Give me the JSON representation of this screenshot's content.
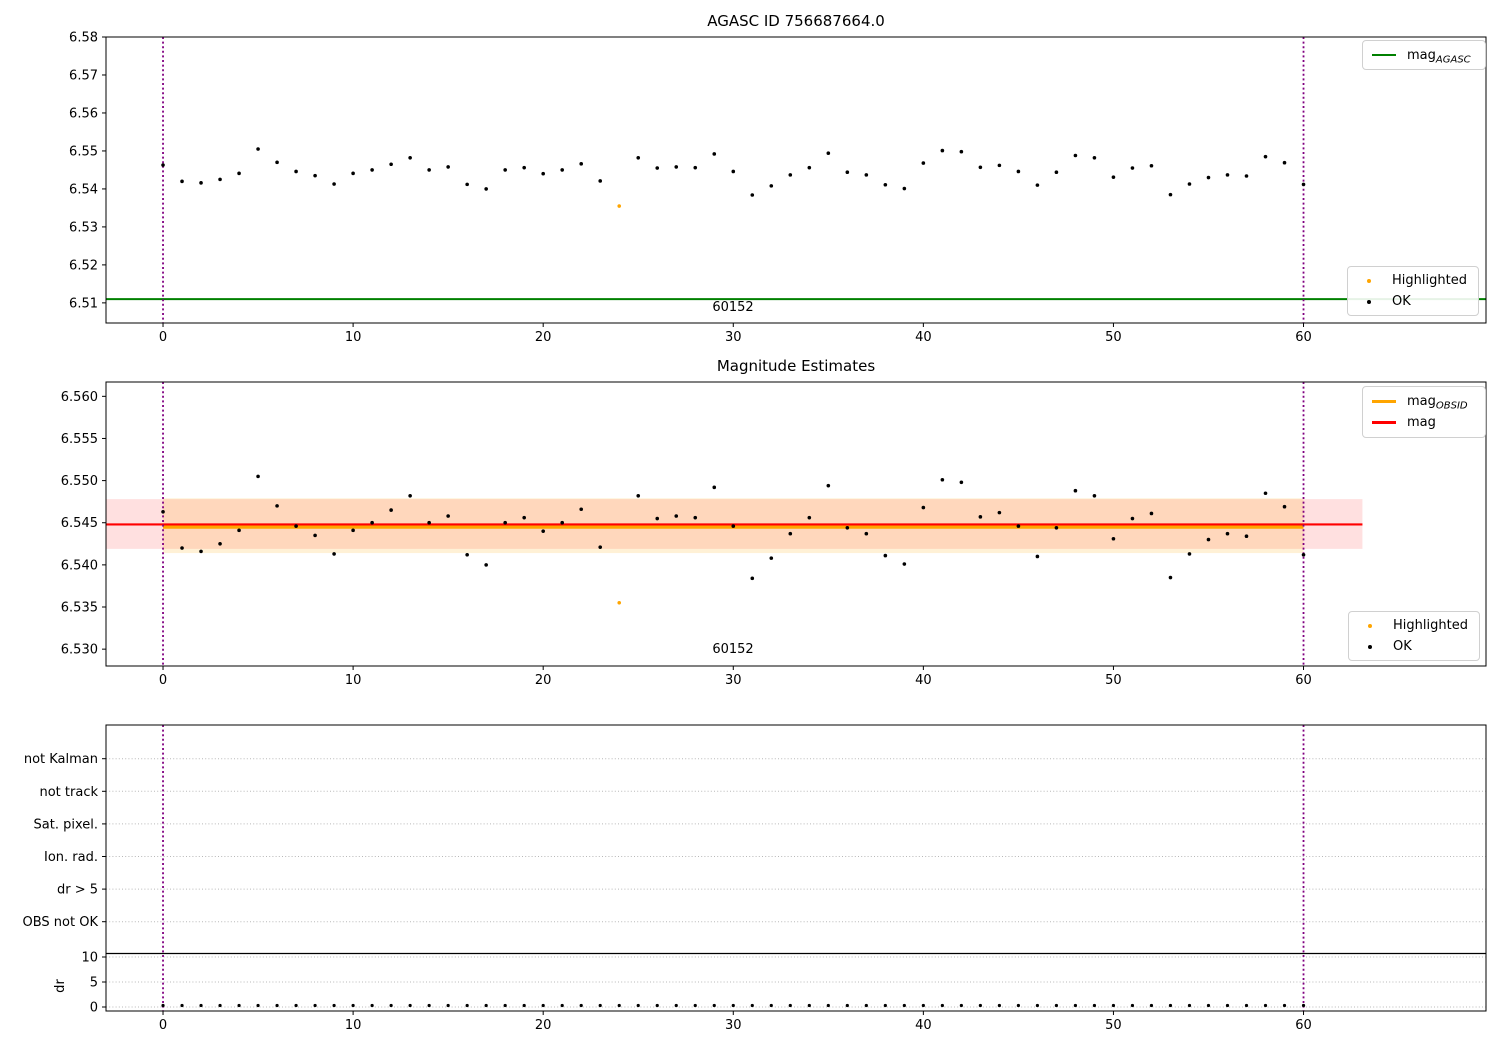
{
  "figure": {
    "title_top": "AGASC ID 756687664.0",
    "title_middle": "Magnitude Estimates"
  },
  "colors": {
    "agasc_line": "#008000",
    "obsid_line": "#ffa500",
    "mag_line": "#ff0000",
    "boundary_vline": "#800080",
    "ok_marker": "#000000",
    "highlighted_marker": "#ffa500",
    "band_red": "rgba(255,0,0,0.12)",
    "band_orange": "rgba(255,165,0,0.16)",
    "gridline": "#b8b8b8",
    "separator_line": "#000000"
  },
  "obsid": {
    "p1": "60152",
    "p2": "60152"
  },
  "legends": {
    "p1_top": {
      "items": [
        {
          "label": "mag",
          "sub": "AGASC"
        }
      ]
    },
    "p1_bottom": {
      "items": [
        {
          "label": "Highlighted"
        },
        {
          "label": "OK"
        }
      ]
    },
    "p2_top": {
      "items": [
        {
          "label": "mag",
          "sub": "OBSID"
        },
        {
          "label": "mag",
          "sub": ""
        }
      ]
    },
    "p2_bottom": {
      "items": [
        {
          "label": "Highlighted"
        },
        {
          "label": "OK"
        }
      ]
    }
  },
  "chart_data": [
    {
      "type": "scatter",
      "panel": "p1",
      "title": "AGASC ID 756687664.0",
      "xlim": [
        -3,
        69.6
      ],
      "ylim": [
        6.5047,
        6.58
      ],
      "xticks": [
        0,
        10,
        20,
        30,
        40,
        50,
        60
      ],
      "yticks": [
        6.51,
        6.52,
        6.53,
        6.54,
        6.55,
        6.56,
        6.57,
        6.58
      ],
      "ytick_decimals": 2,
      "vlines": [
        0,
        60
      ],
      "hlines": [
        {
          "name": "mag-agasc-line",
          "y": 6.511,
          "color": "#008000",
          "width": 2,
          "x0": -3,
          "x1": 69.6
        }
      ],
      "bands": [],
      "x": [
        0,
        1,
        2,
        3,
        4,
        5,
        6,
        7,
        8,
        9,
        10,
        11,
        12,
        13,
        14,
        15,
        16,
        17,
        18,
        19,
        20,
        21,
        22,
        23,
        24,
        25,
        26,
        27,
        28,
        29,
        30,
        31,
        32,
        33,
        34,
        35,
        36,
        37,
        38,
        39,
        40,
        41,
        42,
        43,
        44,
        45,
        46,
        47,
        48,
        49,
        50,
        51,
        52,
        53,
        54,
        55,
        56,
        57,
        58,
        59,
        60
      ],
      "y": [
        6.5463,
        6.542,
        6.5416,
        6.5425,
        6.5441,
        6.5505,
        6.547,
        6.5446,
        6.5435,
        6.5413,
        6.5441,
        6.545,
        6.5465,
        6.5482,
        6.545,
        6.5458,
        6.5412,
        6.54,
        6.545,
        6.5456,
        6.544,
        6.545,
        6.5466,
        6.5421,
        6.5355,
        6.5482,
        6.5455,
        6.5458,
        6.5456,
        6.5492,
        6.5446,
        6.5384,
        6.5408,
        6.5437,
        6.5456,
        6.5494,
        6.5444,
        6.5437,
        6.5411,
        6.5401,
        6.5468,
        6.5501,
        6.5498,
        6.5457,
        6.5462,
        6.5446,
        6.541,
        6.5444,
        6.5488,
        6.5482,
        6.5431,
        6.5455,
        6.5461,
        6.5385,
        6.5413,
        6.543,
        6.5437,
        6.5434,
        6.5485,
        6.5469,
        6.5412
      ],
      "highlighted": [
        24
      ],
      "obsid_label": {
        "text": "60152",
        "x": 30
      }
    },
    {
      "type": "scatter",
      "panel": "p2",
      "title": "Magnitude Estimates",
      "xlim": [
        -3,
        69.6
      ],
      "ylim": [
        6.528,
        6.5617
      ],
      "xticks": [
        0,
        10,
        20,
        30,
        40,
        50,
        60
      ],
      "yticks": [
        6.53,
        6.535,
        6.54,
        6.545,
        6.55,
        6.555,
        6.56
      ],
      "ytick_decimals": 3,
      "vlines": [
        0,
        60
      ],
      "bands": [
        {
          "name": "mag-std-band",
          "y0": 6.5419,
          "y1": 6.5478,
          "x0": -3,
          "x1": 63.1,
          "color": "rgba(255,0,0,0.12)"
        },
        {
          "name": "obsid-std-band",
          "y0": 6.5414,
          "y1": 6.5479,
          "x0": 0,
          "x1": 60,
          "color": "rgba(255,165,0,0.16)"
        }
      ],
      "hlines": [
        {
          "name": "mag-obsid-line",
          "y": 6.5445,
          "color": "#ffa500",
          "width": 3.5,
          "x0": 0,
          "x1": 60
        },
        {
          "name": "mag-line",
          "y": 6.5448,
          "color": "#ff0000",
          "width": 2.2,
          "x0": -3,
          "x1": 63.1
        }
      ],
      "x": [
        0,
        1,
        2,
        3,
        4,
        5,
        6,
        7,
        8,
        9,
        10,
        11,
        12,
        13,
        14,
        15,
        16,
        17,
        18,
        19,
        20,
        21,
        22,
        23,
        24,
        25,
        26,
        27,
        28,
        29,
        30,
        31,
        32,
        33,
        34,
        35,
        36,
        37,
        38,
        39,
        40,
        41,
        42,
        43,
        44,
        45,
        46,
        47,
        48,
        49,
        50,
        51,
        52,
        53,
        54,
        55,
        56,
        57,
        58,
        59,
        60
      ],
      "y": [
        6.5463,
        6.542,
        6.5416,
        6.5425,
        6.5441,
        6.5505,
        6.547,
        6.5446,
        6.5435,
        6.5413,
        6.5441,
        6.545,
        6.5465,
        6.5482,
        6.545,
        6.5458,
        6.5412,
        6.54,
        6.545,
        6.5456,
        6.544,
        6.545,
        6.5466,
        6.5421,
        6.5355,
        6.5482,
        6.5455,
        6.5458,
        6.5456,
        6.5492,
        6.5446,
        6.5384,
        6.5408,
        6.5437,
        6.5456,
        6.5494,
        6.5444,
        6.5437,
        6.5411,
        6.5401,
        6.5468,
        6.5501,
        6.5498,
        6.5457,
        6.5462,
        6.5446,
        6.541,
        6.5444,
        6.5488,
        6.5482,
        6.5431,
        6.5455,
        6.5461,
        6.5385,
        6.5413,
        6.543,
        6.5437,
        6.5434,
        6.5485,
        6.5469,
        6.5412
      ],
      "highlighted": [
        24
      ],
      "obsid_label": {
        "text": "60152",
        "x": 30
      }
    },
    {
      "type": "flags",
      "panel": "p3",
      "categories": [
        "not Kalman",
        "not track",
        "Sat. pixel.",
        "Ion. rad.",
        "dr > 5",
        "OBS not OK"
      ],
      "dr_ticks": [
        0,
        5,
        10
      ],
      "dr_label": "dr",
      "separator_dr": 10.7,
      "xlim": [
        -3,
        69.6
      ],
      "xticks": [
        0,
        10,
        20,
        30,
        40,
        50,
        60
      ],
      "vlines": [
        0,
        60
      ],
      "x": [
        0,
        1,
        2,
        3,
        4,
        5,
        6,
        7,
        8,
        9,
        10,
        11,
        12,
        13,
        14,
        15,
        16,
        17,
        18,
        19,
        20,
        21,
        22,
        23,
        24,
        25,
        26,
        27,
        28,
        29,
        30,
        31,
        32,
        33,
        34,
        35,
        36,
        37,
        38,
        39,
        40,
        41,
        42,
        43,
        44,
        45,
        46,
        47,
        48,
        49,
        50,
        51,
        52,
        53,
        54,
        55,
        56,
        57,
        58,
        59,
        60
      ],
      "dr": [
        0.3,
        0.3,
        0.3,
        0.3,
        0.3,
        0.3,
        0.3,
        0.3,
        0.3,
        0.3,
        0.3,
        0.3,
        0.3,
        0.3,
        0.3,
        0.3,
        0.3,
        0.3,
        0.3,
        0.3,
        0.3,
        0.3,
        0.3,
        0.3,
        0.3,
        0.3,
        0.3,
        0.3,
        0.3,
        0.3,
        0.3,
        0.3,
        0.3,
        0.3,
        0.3,
        0.3,
        0.3,
        0.3,
        0.3,
        0.3,
        0.3,
        0.3,
        0.3,
        0.3,
        0.3,
        0.3,
        0.3,
        0.3,
        0.3,
        0.3,
        0.3,
        0.3,
        0.3,
        0.3,
        0.3,
        0.3,
        0.3,
        0.3,
        0.3,
        0.3,
        0.3
      ]
    }
  ]
}
